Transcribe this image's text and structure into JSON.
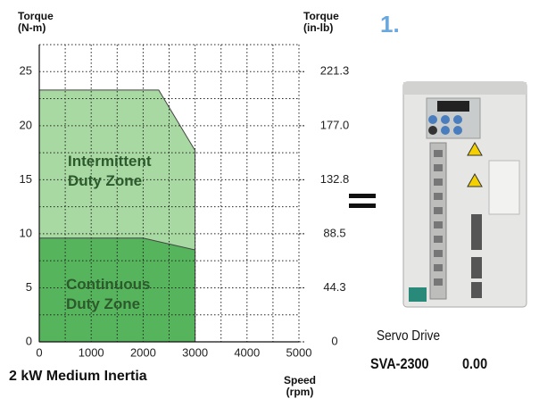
{
  "chart_data": {
    "type": "area",
    "y_label": "Torque\n(N-m)",
    "y2_label": "Torque\n(in-lb)",
    "x_label": "Speed\n(rpm)",
    "caption": "2 kW Medium Inertia",
    "xlim": [
      0,
      5000
    ],
    "xticks": [
      0,
      1000,
      2000,
      3000,
      4000,
      5000
    ],
    "x_minor_ticks": [
      500,
      1500,
      2500,
      3500,
      4500
    ],
    "ylim": [
      0,
      27.5
    ],
    "yticks": [
      0,
      5,
      10,
      15,
      20,
      25
    ],
    "y_minor_ticks": [
      2.5,
      7.5,
      12.5,
      17.5,
      22.5
    ],
    "y2lim": [
      0,
      243.4
    ],
    "y2ticks": [
      0,
      44.3,
      88.5,
      132.8,
      {
        "value": 177,
        "label": "177.0"
      },
      221.3
    ],
    "grid": true,
    "series": [
      {
        "name": "Intermittent Duty Zone",
        "color": "#a9d9a3",
        "x": [
          0,
          0,
          2300,
          3000,
          3000
        ],
        "values": [
          0,
          23.3,
          23.3,
          17.7,
          0
        ]
      },
      {
        "name": "Continuous Duty Zone",
        "color": "#56b55c",
        "x": [
          0,
          0,
          2000,
          3000,
          3000
        ],
        "values": [
          0,
          9.6,
          9.6,
          8.5,
          0
        ]
      }
    ]
  },
  "product": {
    "number": "1.",
    "name": "Servo Drive",
    "model": "SVA-2300",
    "price": "0.00"
  }
}
